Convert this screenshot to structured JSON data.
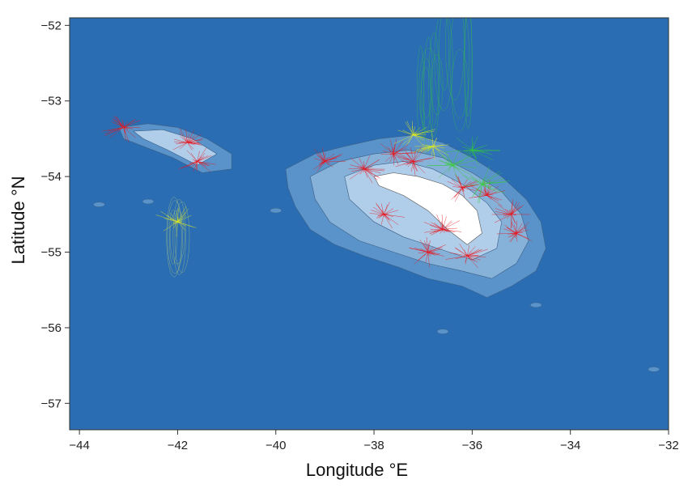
{
  "chart_data": {
    "type": "map",
    "xlabel": "Longitude °E",
    "ylabel": "Latitude °N",
    "xlim": [
      -44.2,
      -32
    ],
    "ylim": [
      -57.35,
      -51.9
    ],
    "x_ticks": [
      -44,
      -42,
      -40,
      -38,
      -36,
      -34,
      -32
    ],
    "y_ticks": [
      -52,
      -53,
      -54,
      -55,
      -56,
      -57
    ],
    "x_tick_labels": [
      "−44",
      "−42",
      "−40",
      "−38",
      "−36",
      "−34",
      "−32"
    ],
    "y_tick_labels": [
      "−52",
      "−53",
      "−54",
      "−55",
      "−56",
      "−57"
    ],
    "colors": {
      "ocean": "#2a6db3",
      "shelf_outer": "#5a93c9",
      "shelf_mid": "#86b1d9",
      "shelf_inner": "#b0cde9",
      "land": "#ffffff",
      "track_red": "#e8141c",
      "track_yellow": "#e8f01a",
      "track_green": "#33cc33"
    },
    "legend": "none",
    "grid": false
  }
}
